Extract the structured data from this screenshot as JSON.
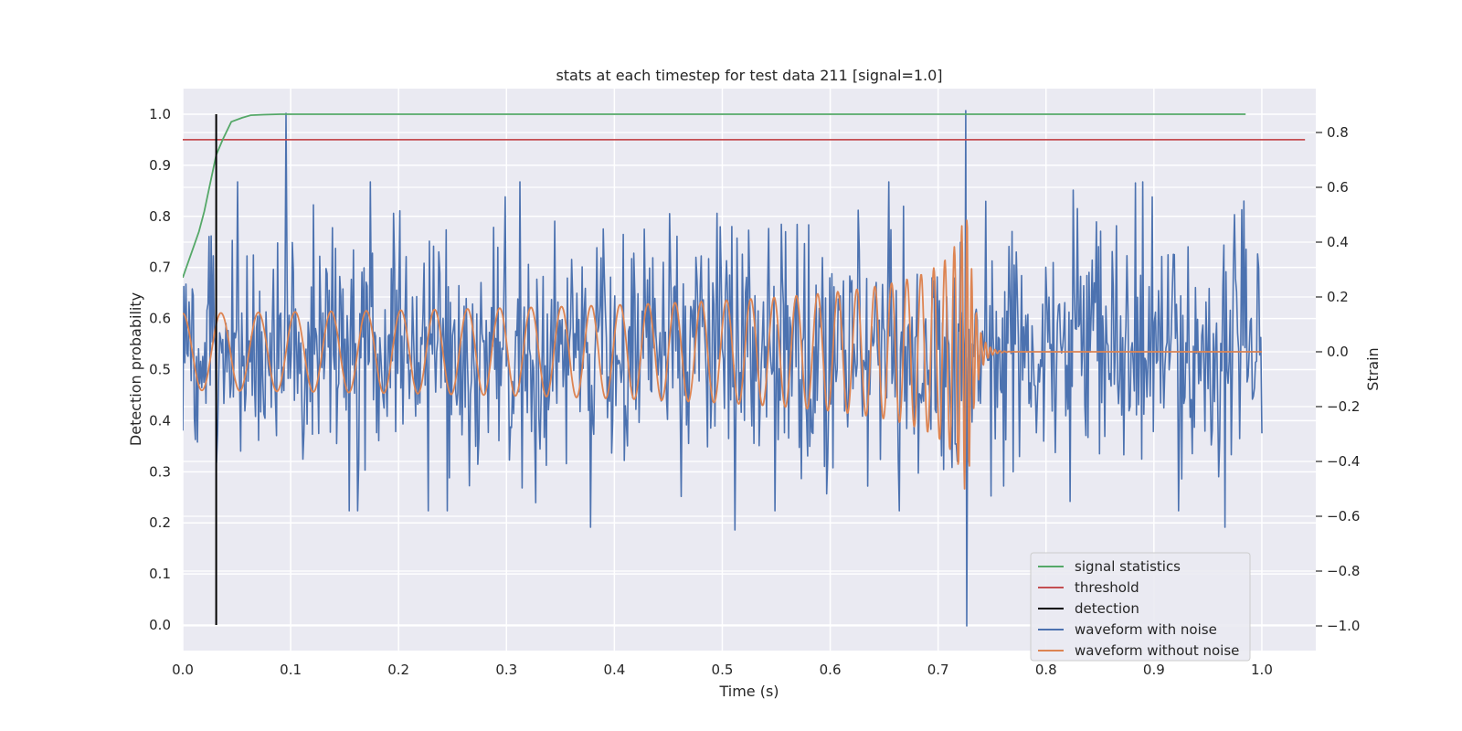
{
  "chart_data": {
    "type": "line",
    "title": "stats at each timestep for test data 211 [signal=1.0]",
    "xlabel": "Time (s)",
    "ylabel": "Detection probability",
    "y2label": "Strain",
    "xlim": [
      0.0,
      1.05
    ],
    "ylim": [
      -0.05,
      1.05
    ],
    "y2lim": [
      -1.09,
      0.96
    ],
    "xticks": [
      "0.0",
      "0.1",
      "0.2",
      "0.3",
      "0.4",
      "0.5",
      "0.6",
      "0.7",
      "0.8",
      "0.9",
      "1.0"
    ],
    "yticks": [
      "0.0",
      "0.1",
      "0.2",
      "0.3",
      "0.4",
      "0.5",
      "0.6",
      "0.7",
      "0.8",
      "0.9",
      "1.0"
    ],
    "y2ticks": [
      "−1.0",
      "−0.8",
      "−0.6",
      "−0.4",
      "−0.2",
      "0.0",
      "0.2",
      "0.4",
      "0.6",
      "0.8"
    ],
    "grid": true,
    "legend_position": "lower-right",
    "colors": {
      "background": "#eaeaf2",
      "signal_statistics": "#55a868",
      "threshold": "#c44e52",
      "detection": "#000000",
      "waveform_noise": "#4c72b0",
      "waveform_clean": "#dd8452"
    },
    "series": [
      {
        "name": "signal statistics",
        "axis": "left",
        "x": [
          0.0,
          0.005,
          0.01,
          0.015,
          0.02,
          0.025,
          0.031,
          0.037,
          0.045,
          0.055,
          0.063,
          0.075,
          0.09,
          0.2,
          0.4,
          0.6,
          0.8,
          0.985
        ],
        "y": [
          0.68,
          0.71,
          0.74,
          0.77,
          0.81,
          0.86,
          0.92,
          0.95,
          0.985,
          0.993,
          0.998,
          0.999,
          1.0,
          1.0,
          1.0,
          1.0,
          1.0,
          1.0
        ]
      },
      {
        "name": "threshold",
        "axis": "left",
        "x": [
          0.0,
          1.04
        ],
        "y": [
          0.95,
          0.95
        ]
      },
      {
        "name": "detection",
        "axis": "left",
        "x": [
          0.031,
          0.031
        ],
        "y": [
          0.0,
          1.0
        ]
      },
      {
        "name": "waveform with noise",
        "axis": "right",
        "x_range": [
          0.0,
          1.0
        ],
        "samples": 1024,
        "noise_std": 0.22,
        "spikes": [
          {
            "x": 0.096,
            "y": 0.87
          },
          {
            "x": 0.726,
            "y": 0.88
          },
          {
            "x": 0.727,
            "y": -1.0
          },
          {
            "x": 0.378,
            "y": -0.64
          },
          {
            "x": 0.512,
            "y": -0.65
          },
          {
            "x": 0.966,
            "y": -0.64
          }
        ]
      },
      {
        "name": "waveform without noise",
        "axis": "right",
        "x_range": [
          0.0,
          1.0
        ],
        "samples": 2000,
        "merger_time": 0.728,
        "amplitude_start": 0.14,
        "amplitude_peak": 0.5,
        "frequency_start_hz": 28,
        "frequency_peak_hz": 230
      }
    ],
    "legend": [
      {
        "label": "signal statistics",
        "series": "signal_statistics"
      },
      {
        "label": "threshold",
        "series": "threshold"
      },
      {
        "label": "detection",
        "series": "detection"
      },
      {
        "label": "waveform with noise",
        "series": "waveform_noise"
      },
      {
        "label": "waveform without noise",
        "series": "waveform_clean"
      }
    ]
  }
}
